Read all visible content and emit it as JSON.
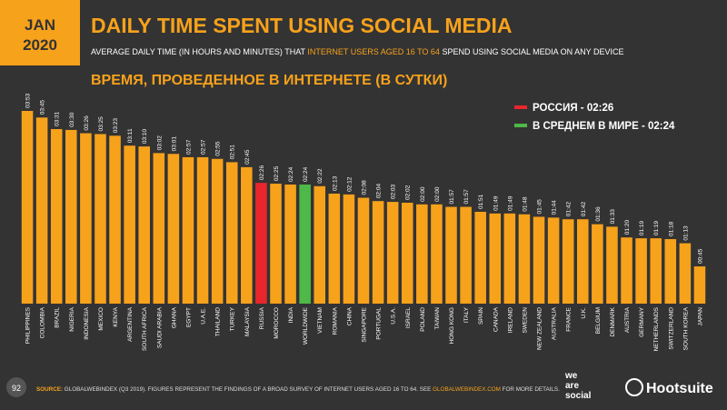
{
  "header": {
    "month": "JAN",
    "year": "2020",
    "title": "DAILY TIME SPENT USING SOCIAL MEDIA",
    "subtitle": [
      "AVERAGE DAILY TIME (IN HOURS AND MINUTES) THAT ",
      "INTERNET USERS AGED 16 TO 64",
      " SPEND USING SOCIAL MEDIA ON ANY DEVICE"
    ],
    "heading": "ВРЕМЯ, ПРОВЕДЕННОЕ В ИНТЕРНЕТЕ (В СУТКИ)"
  },
  "chart_data": {
    "type": "bar",
    "categories": [
      "PHILIPPINES",
      "COLOMBIA",
      "BRAZIL",
      "NIGERIA",
      "INDONESIA",
      "MEXICO",
      "KENYA",
      "ARGENTINA",
      "SOUTH AFRICA",
      "SAUDI ARABIA",
      "GHANA",
      "EGYPT",
      "U.A.E.",
      "THAILAND",
      "TURKEY",
      "MALAYSIA",
      "RUSSIA",
      "MOROCCO",
      "INDIA",
      "WORLDWIDE",
      "VIETNAM",
      "ROMANIA",
      "CHINA",
      "SINGAPORE",
      "PORTUGAL",
      "U.S.A.",
      "ISRAEL",
      "POLAND",
      "TAIWAN",
      "HONG KONG",
      "ITALY",
      "SPAIN",
      "CANADA",
      "IRELAND",
      "SWEDEN",
      "NEW ZEALAND",
      "AUSTRALIA",
      "FRANCE",
      "U.K.",
      "BELGIUM",
      "DENMARK",
      "AUSTRIA",
      "GERMANY",
      "NETHERLANDS",
      "SWITZERLAND",
      "SOUTH KOREA",
      "JAPAN"
    ],
    "values": [
      233,
      225,
      211,
      210,
      206,
      205,
      203,
      191,
      190,
      182,
      181,
      177,
      177,
      175,
      171,
      165,
      146,
      145,
      144,
      144,
      142,
      133,
      132,
      128,
      124,
      123,
      122,
      120,
      120,
      117,
      117,
      111,
      109,
      109,
      108,
      105,
      104,
      102,
      102,
      96,
      93,
      80,
      79,
      79,
      78,
      73,
      45
    ],
    "value_labels": [
      "03:53",
      "03:45",
      "03:31",
      "03:30",
      "03:26",
      "03:25",
      "03:23",
      "03:11",
      "03:10",
      "03:02",
      "03:01",
      "02:57",
      "02:57",
      "02:55",
      "02:51",
      "02:45",
      "02:26",
      "02:25",
      "02:24",
      "02:24",
      "02:22",
      "02:13",
      "02:12",
      "02:08",
      "02:04",
      "02:03",
      "02:02",
      "02:00",
      "02:00",
      "01:57",
      "01:57",
      "01:51",
      "01:49",
      "01:49",
      "01:48",
      "01:45",
      "01:44",
      "01:42",
      "01:42",
      "01:36",
      "01:33",
      "01:20",
      "01:19",
      "01:19",
      "01:18",
      "01:13",
      "00:45"
    ],
    "colors": [
      "#f7a21b",
      "#f7a21b",
      "#f7a21b",
      "#f7a21b",
      "#f7a21b",
      "#f7a21b",
      "#f7a21b",
      "#f7a21b",
      "#f7a21b",
      "#f7a21b",
      "#f7a21b",
      "#f7a21b",
      "#f7a21b",
      "#f7a21b",
      "#f7a21b",
      "#f7a21b",
      "#e8262c",
      "#f7a21b",
      "#f7a21b",
      "#4fb848",
      "#f7a21b",
      "#f7a21b",
      "#f7a21b",
      "#f7a21b",
      "#f7a21b",
      "#f7a21b",
      "#f7a21b",
      "#f7a21b",
      "#f7a21b",
      "#f7a21b",
      "#f7a21b",
      "#f7a21b",
      "#f7a21b",
      "#f7a21b",
      "#f7a21b",
      "#f7a21b",
      "#f7a21b",
      "#f7a21b",
      "#f7a21b",
      "#f7a21b",
      "#f7a21b",
      "#f7a21b",
      "#f7a21b",
      "#f7a21b",
      "#f7a21b",
      "#f7a21b",
      "#f7a21b"
    ],
    "legend": [
      {
        "label": "РОССИЯ - 02:26",
        "color": "#e8262c"
      },
      {
        "label": "В СРЕДНЕМ В МИРЕ - 02:24",
        "color": "#4fb848"
      }
    ]
  },
  "footer": {
    "page": "92",
    "source": [
      "SOURCE:",
      " GLOBALWEBINDEX (Q3 2019). FIGURES REPRESENT THE FINDINGS OF A BROAD SURVEY OF INTERNET USERS AGED 16 TO 64. SEE ",
      "GLOBALWEBINDEX.COM",
      " FOR MORE DETAILS."
    ],
    "logo1": [
      "we",
      "are",
      "social"
    ],
    "logo2": "Hootsuite"
  }
}
